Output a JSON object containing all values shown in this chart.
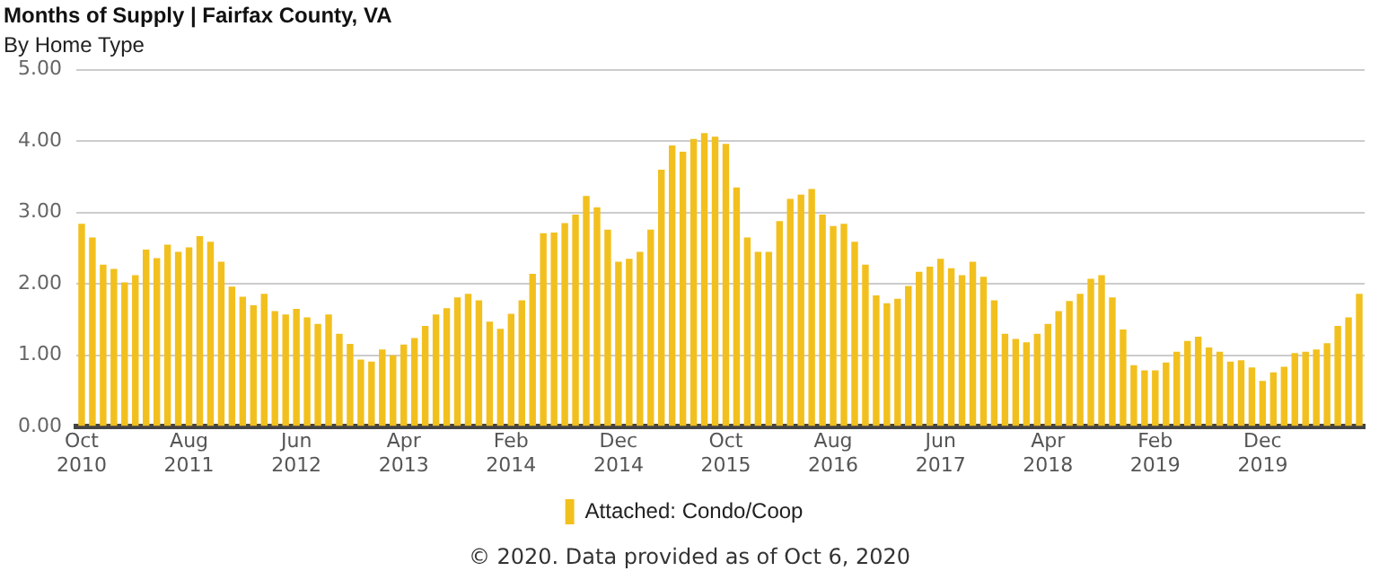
{
  "chart_data": {
    "type": "bar",
    "title": "Months of Supply | Fairfax County, VA",
    "subtitle": "By Home Type",
    "categories": [
      "Oct 2010",
      null,
      null,
      null,
      null,
      null,
      null,
      null,
      null,
      null,
      "Aug 2011",
      null,
      null,
      null,
      null,
      null,
      null,
      null,
      null,
      null,
      "Jun 2012",
      null,
      null,
      null,
      null,
      null,
      null,
      null,
      null,
      null,
      "Apr 2013",
      null,
      null,
      null,
      null,
      null,
      null,
      null,
      null,
      null,
      "Feb 2014",
      null,
      null,
      null,
      null,
      null,
      null,
      null,
      null,
      null,
      "Dec 2014",
      null,
      null,
      null,
      null,
      null,
      null,
      null,
      null,
      null,
      "Oct 2015",
      null,
      null,
      null,
      null,
      null,
      null,
      null,
      null,
      null,
      "Aug 2016",
      null,
      null,
      null,
      null,
      null,
      null,
      null,
      null,
      null,
      "Jun 2017",
      null,
      null,
      null,
      null,
      null,
      null,
      null,
      null,
      null,
      "Apr 2018",
      null,
      null,
      null,
      null,
      null,
      null,
      null,
      null,
      null,
      "Feb 2019",
      null,
      null,
      null,
      null,
      null,
      null,
      null,
      null,
      null,
      "Dec 2019",
      null,
      null,
      null,
      null,
      null,
      null,
      null,
      null,
      null
    ],
    "series": [
      {
        "name": "Attached: Condo/Coop",
        "color": "#f2c01e",
        "values": [
          2.84,
          2.65,
          2.27,
          2.21,
          2.02,
          2.12,
          2.48,
          2.36,
          2.55,
          2.45,
          2.51,
          2.67,
          2.59,
          2.31,
          1.96,
          1.82,
          1.7,
          1.86,
          1.62,
          1.57,
          1.65,
          1.53,
          1.44,
          1.57,
          1.3,
          1.16,
          0.94,
          0.91,
          1.08,
          1.0,
          1.15,
          1.24,
          1.41,
          1.57,
          1.66,
          1.81,
          1.86,
          1.77,
          1.47,
          1.37,
          1.58,
          1.77,
          2.14,
          2.71,
          2.72,
          2.85,
          2.97,
          3.23,
          3.07,
          2.76,
          2.31,
          2.35,
          2.45,
          2.76,
          3.6,
          3.94,
          3.85,
          4.03,
          4.11,
          4.06,
          3.96,
          3.35,
          2.65,
          2.45,
          2.45,
          2.88,
          3.19,
          3.25,
          3.33,
          2.97,
          2.81,
          2.84,
          2.59,
          2.27,
          1.84,
          1.73,
          1.79,
          1.97,
          2.17,
          2.24,
          2.35,
          2.22,
          2.12,
          2.31,
          2.1,
          1.77,
          1.3,
          1.23,
          1.18,
          1.3,
          1.44,
          1.62,
          1.76,
          1.86,
          2.07,
          2.12,
          1.81,
          1.36,
          0.86,
          0.79,
          0.79,
          0.9,
          1.05,
          1.2,
          1.26,
          1.11,
          1.05,
          0.91,
          0.93,
          0.83,
          0.64,
          0.76,
          0.84,
          1.03,
          1.05,
          1.08,
          1.17,
          1.41,
          1.53,
          1.86
        ]
      }
    ],
    "ylim": [
      0,
      5
    ],
    "yticks": [
      {
        "value": 0,
        "label": "0.00"
      },
      {
        "value": 1,
        "label": "1.00"
      },
      {
        "value": 2,
        "label": "2.00"
      },
      {
        "value": 3,
        "label": "3.00"
      },
      {
        "value": 4,
        "label": "4.00"
      },
      {
        "value": 5,
        "label": "5.00"
      }
    ],
    "grid": "y",
    "legend": "bottom",
    "annotations": [
      "© 2020. Data provided as of Oct 6, 2020"
    ]
  }
}
